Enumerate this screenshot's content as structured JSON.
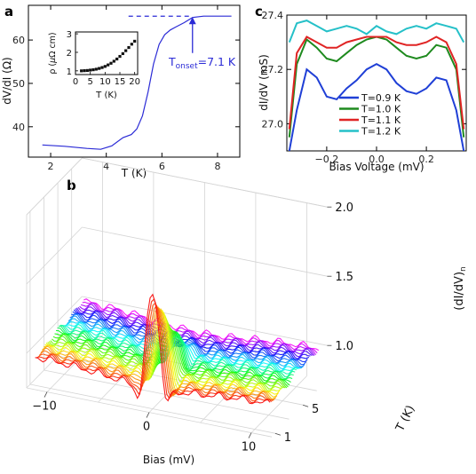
{
  "panels": {
    "a": "a",
    "b": "b",
    "c": "c"
  },
  "chart_data": [
    {
      "type": "line",
      "panel": "a",
      "xlabel": "T (K)",
      "ylabel": "dV/dI (Ω)",
      "xlim": [
        1.2,
        8.8
      ],
      "ylim": [
        33,
        68
      ],
      "xticks": [
        2,
        4,
        6,
        8
      ],
      "yticks": [
        40,
        50,
        60
      ],
      "x": [
        1.7,
        2.5,
        3.3,
        3.8,
        4.2,
        4.6,
        4.9,
        5.1,
        5.3,
        5.5,
        5.7,
        5.9,
        6.1,
        6.3,
        6.5,
        6.8,
        7.1,
        7.5,
        8.0,
        8.5
      ],
      "y": [
        35.8,
        35.5,
        35.0,
        34.8,
        35.6,
        37.5,
        38.2,
        39.5,
        42.5,
        48.0,
        54.5,
        59.0,
        61.2,
        62.3,
        63.0,
        64.0,
        65.2,
        65.5,
        65.5,
        65.5
      ],
      "annotation": {
        "text_main": "T",
        "text_sub": "onset",
        "text_rest": "=7.1 K",
        "x": 7.1,
        "level": 65.5
      },
      "inset": {
        "type": "scatter",
        "ylabel_parts": {
          "pre": "ρ (",
          "mu": "μ",
          "post": "Ω cm)"
        },
        "xlabel": "T (K)",
        "xlim": [
          0,
          21
        ],
        "ylim": [
          0.8,
          3.1
        ],
        "xticks": [
          0,
          5,
          10,
          15,
          20
        ],
        "xtick_labels": [
          "0",
          "5",
          "10",
          "15",
          "20"
        ],
        "yticks": [
          1,
          2,
          3
        ],
        "x": [
          2.0,
          3.0,
          4.0,
          5.0,
          6.0,
          7.0,
          8.0,
          9.0,
          10.0,
          11.0,
          12.0,
          13.0,
          14.0,
          15.0,
          16.0,
          17.0,
          18.0,
          19.0,
          20.0
        ],
        "y": [
          1.0,
          1.01,
          1.02,
          1.04,
          1.06,
          1.09,
          1.13,
          1.18,
          1.24,
          1.32,
          1.41,
          1.52,
          1.64,
          1.78,
          1.93,
          2.09,
          2.26,
          2.44,
          2.6
        ]
      }
    },
    {
      "type": "line",
      "panel": "c",
      "xlabel": "Bias Voltage (mV)",
      "ylabel": "dI/dV (mS)",
      "xlim": [
        -0.36,
        0.36
      ],
      "ylim": [
        26.9,
        27.4
      ],
      "xticks": [
        -0.2,
        0.0,
        0.2
      ],
      "xtick_labels": [
        "−0.2",
        "0.0",
        "0.2"
      ],
      "yticks": [
        27.0,
        27.2,
        27.4
      ],
      "ytick_labels": [
        "27.0",
        "27.2",
        "27.4"
      ],
      "x": [
        -0.35,
        -0.32,
        -0.28,
        -0.24,
        -0.2,
        -0.16,
        -0.12,
        -0.08,
        -0.04,
        0.0,
        0.04,
        0.08,
        0.12,
        0.16,
        0.2,
        0.24,
        0.28,
        0.32,
        0.35
      ],
      "series": [
        {
          "name": "T=0.9 K",
          "color": "#1f3fd6",
          "values": [
            26.9,
            27.05,
            27.2,
            27.17,
            27.1,
            27.09,
            27.13,
            27.16,
            27.2,
            27.22,
            27.2,
            27.15,
            27.12,
            27.11,
            27.13,
            27.17,
            27.16,
            27.05,
            26.9
          ]
        },
        {
          "name": "T=1.0 K",
          "color": "#1e8a1e",
          "values": [
            26.95,
            27.22,
            27.31,
            27.28,
            27.24,
            27.23,
            27.26,
            27.29,
            27.31,
            27.32,
            27.31,
            27.28,
            27.25,
            27.24,
            27.25,
            27.29,
            27.28,
            27.2,
            26.95
          ]
        },
        {
          "name": "T=1.1 K",
          "color": "#e02424",
          "values": [
            26.98,
            27.26,
            27.32,
            27.3,
            27.28,
            27.28,
            27.3,
            27.31,
            27.32,
            27.32,
            27.32,
            27.3,
            27.29,
            27.29,
            27.3,
            27.32,
            27.3,
            27.22,
            26.98
          ]
        },
        {
          "name": "T=1.2 K",
          "color": "#25c0c8",
          "values": [
            27.3,
            27.37,
            27.38,
            27.36,
            27.34,
            27.35,
            27.36,
            27.35,
            27.33,
            27.36,
            27.34,
            27.33,
            27.35,
            27.36,
            27.35,
            27.37,
            27.36,
            27.35,
            27.3
          ]
        }
      ]
    },
    {
      "type": "line",
      "panel": "b",
      "xlabel": "Bias (mV)",
      "ylabel_main": "(dI/dV)",
      "ylabel_sub": "n",
      "zlabel": "T (K)",
      "xlim": [
        -12,
        12
      ],
      "xticks": [
        -10,
        0,
        10
      ],
      "xtick_labels": [
        "−10",
        "0",
        "10"
      ],
      "ylim": [
        0.75,
        2.0
      ],
      "yticks": [
        1.0,
        1.5,
        2.0
      ],
      "ytick_labels": [
        "1.0",
        "1.5",
        "2.0"
      ],
      "tlim": [
        0.5,
        8.5
      ],
      "tticks": [
        1,
        5
      ],
      "tick_labels_t": [
        "1",
        "5"
      ],
      "temperatures": [
        1.0,
        1.2,
        1.4,
        1.6,
        1.8,
        2.0,
        2.2,
        2.4,
        2.6,
        2.8,
        3.0,
        3.2,
        3.4,
        3.6,
        3.8,
        4.0,
        4.2,
        4.4,
        4.6,
        4.8,
        5.0,
        5.2,
        5.4,
        5.6,
        5.8,
        6.0,
        6.2,
        6.4,
        6.6,
        6.8,
        7.0,
        7.2,
        7.4,
        7.6,
        7.8,
        8.0
      ],
      "spectrum_model": {
        "peak_max": 1.88,
        "peak_width_mV": 0.6,
        "dip_depth": 0.18,
        "dip_position_mV": 1.3,
        "tc_K": 7.1,
        "normal_level": 1.0
      }
    }
  ]
}
